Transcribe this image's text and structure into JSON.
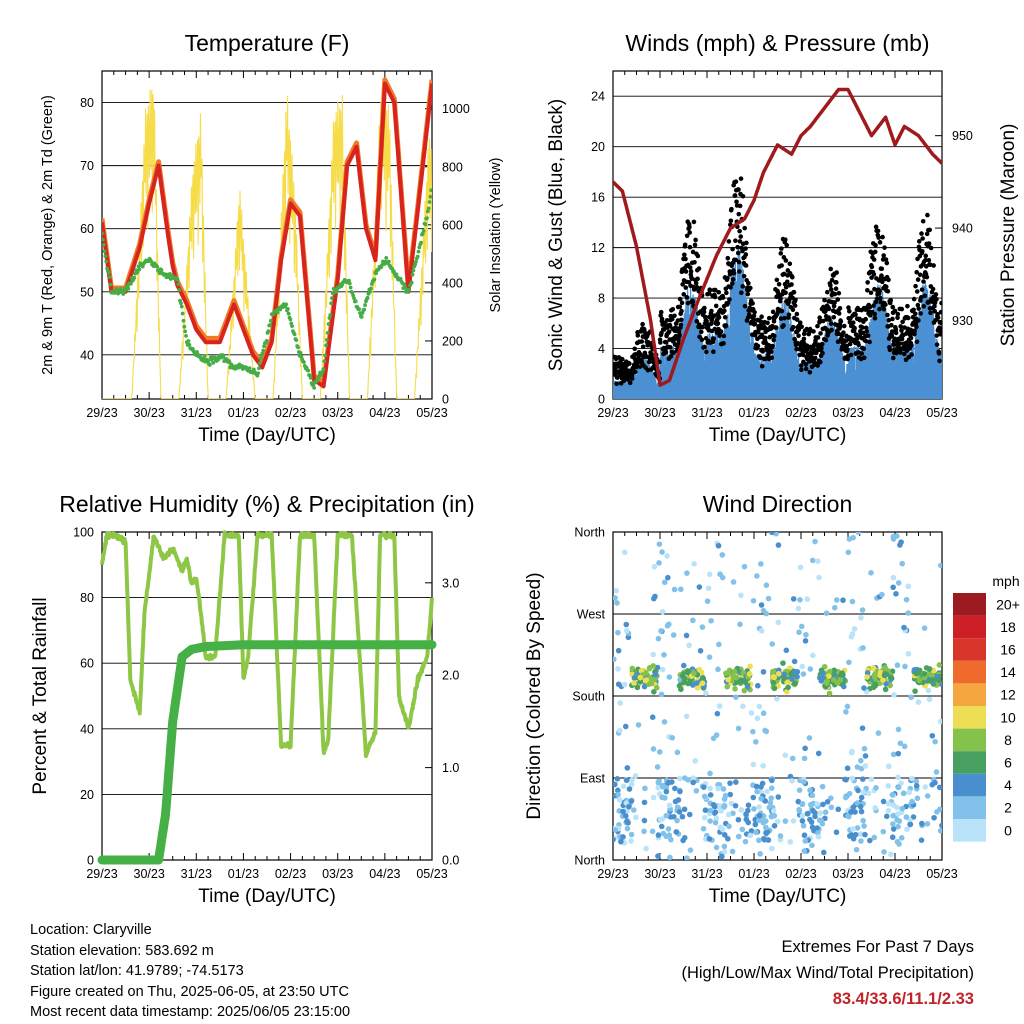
{
  "chart_data": [
    {
      "type": "line",
      "title": "Temperature (F)",
      "xlabel": "Time (Day/UTC)",
      "ylabel": "2m & 9m T (Red, Orange) & 2m Td (Green)",
      "y2label": "Solar Insolation (Yellow)",
      "x_ticks": [
        "29/23",
        "30/23",
        "31/23",
        "01/23",
        "02/23",
        "03/23",
        "04/23",
        "05/23"
      ],
      "ylim": [
        33,
        85
      ],
      "y_ticks": [
        40,
        50,
        60,
        70,
        80
      ],
      "y2lim": [
        0,
        1130
      ],
      "y2_ticks": [
        0,
        200,
        400,
        600,
        800,
        1000
      ],
      "colors": {
        "t2m": "#d7241f",
        "t9m": "#f07a26",
        "td": "#46ad46",
        "solar": "#f7dc4a"
      },
      "series": [
        {
          "key": "t2m",
          "x": [
            0,
            0.2,
            0.5,
            0.8,
            1.0,
            1.2,
            1.4,
            1.5,
            1.6,
            1.8,
            2.0,
            2.2,
            2.5,
            2.8,
            3.0,
            3.2,
            3.4,
            3.6,
            3.8,
            4.0,
            4.2,
            4.5,
            4.7,
            5.0,
            5.2,
            5.4,
            5.6,
            5.8,
            6.0,
            6.2,
            6.5,
            6.7,
            7.0
          ],
          "values": [
            61,
            50,
            50,
            57,
            64,
            70,
            59,
            54,
            51,
            48,
            44,
            42,
            42,
            48,
            44,
            40,
            38,
            42,
            55,
            64,
            62,
            36,
            35,
            52,
            70,
            73,
            60,
            55,
            83,
            80,
            50,
            63,
            83
          ]
        },
        {
          "key": "td",
          "x": [
            0,
            0.2,
            0.5,
            0.8,
            1.0,
            1.3,
            1.6,
            1.8,
            2.0,
            2.3,
            2.5,
            2.8,
            3.0,
            3.3,
            3.6,
            3.9,
            4.2,
            4.5,
            4.7,
            4.9,
            5.2,
            5.5,
            5.8,
            6.0,
            6.2,
            6.5,
            6.7,
            6.9,
            7.0
          ],
          "values": [
            59,
            50,
            50,
            54,
            55,
            53,
            52,
            42,
            40,
            39,
            40,
            38,
            38,
            37,
            46,
            48,
            40,
            35,
            38,
            50,
            52,
            46,
            53,
            55,
            53,
            50,
            56,
            62,
            67
          ]
        },
        {
          "key": "solar",
          "x": [
            0.63,
            0.92,
            1.1,
            1.25,
            1.63,
            1.92,
            2.1,
            2.25,
            2.63,
            2.92,
            3.1,
            3.25,
            3.63,
            3.92,
            4.1,
            4.25,
            4.63,
            4.92,
            5.1,
            5.25,
            5.63,
            5.92,
            6.1,
            6.25,
            6.63,
            6.92
          ],
          "values": [
            0,
            1000,
            1120,
            0,
            0,
            800,
            1000,
            0,
            0,
            750,
            350,
            0,
            0,
            1080,
            700,
            0,
            0,
            1000,
            1050,
            0,
            0,
            1100,
            1000,
            0,
            0,
            900
          ]
        }
      ]
    },
    {
      "type": "scatter",
      "title": "Winds (mph) & Pressure (mb)",
      "xlabel": "Time (Day/UTC)",
      "ylabel": "Sonic Wind & Gust (Blue, Black)",
      "y2label": "Station Pressure (Maroon)",
      "x_ticks": [
        "29/23",
        "30/23",
        "31/23",
        "01/23",
        "02/23",
        "03/23",
        "04/23",
        "05/23"
      ],
      "ylim": [
        0,
        26
      ],
      "y_ticks": [
        0,
        4,
        8,
        12,
        16,
        20,
        24
      ],
      "y2lim": [
        921.5,
        957
      ],
      "y2_ticks": [
        930,
        940,
        950
      ],
      "colors": {
        "wind": "#4a90d2",
        "gust": "#000000",
        "pressure": "#a0191d"
      },
      "series": [
        {
          "key": "pressure",
          "x": [
            0,
            0.2,
            0.5,
            0.8,
            1.0,
            1.2,
            1.5,
            1.8,
            2.2,
            2.5,
            2.8,
            3.0,
            3.2,
            3.5,
            3.8,
            4.0,
            4.2,
            4.5,
            4.8,
            5.0,
            5.2,
            5.5,
            5.8,
            6.0,
            6.2,
            6.5,
            6.8,
            7.0
          ],
          "values": [
            945,
            944,
            938,
            930,
            923,
            923.5,
            928,
            932,
            937,
            940,
            941,
            943,
            946,
            949,
            948,
            950,
            951,
            953,
            955,
            955,
            953,
            950,
            952,
            949,
            951,
            950,
            948,
            947
          ]
        }
      ]
    },
    {
      "type": "line",
      "title": "Relative Humidity (%) & Precipitation (in)",
      "xlabel": "Time (Day/UTC)",
      "ylabel": "Percent & Total Rainfall",
      "x_ticks": [
        "29/23",
        "30/23",
        "31/23",
        "01/23",
        "02/23",
        "03/23",
        "04/23",
        "05/23"
      ],
      "ylim": [
        0,
        100
      ],
      "y_ticks": [
        0,
        20,
        40,
        60,
        80,
        100
      ],
      "y2lim": [
        0,
        3.55
      ],
      "y2_ticks": [
        "0.0",
        "1.0",
        "2.0",
        "3.0"
      ],
      "colors": {
        "rh": "#8ec646",
        "rain": "#45b045"
      },
      "series": [
        {
          "key": "rh",
          "x": [
            0,
            0.1,
            0.3,
            0.5,
            0.6,
            0.8,
            0.9,
            1.1,
            1.3,
            1.5,
            1.7,
            1.8,
            1.9,
            2.0,
            2.1,
            2.2,
            2.4,
            2.6,
            2.8,
            2.9,
            3.0,
            3.1,
            3.3,
            3.5,
            3.6,
            3.8,
            4.0,
            4.2,
            4.3,
            4.5,
            4.7,
            4.8,
            5.0,
            5.2,
            5.3,
            5.6,
            5.8,
            5.9,
            6.0,
            6.2,
            6.3,
            6.5,
            6.7,
            6.9,
            7.0
          ],
          "values": [
            90,
            99,
            99,
            97,
            55,
            45,
            75,
            99,
            92,
            95,
            88,
            92,
            84,
            86,
            75,
            62,
            62,
            99,
            99,
            99,
            55,
            62,
            99,
            99,
            99,
            35,
            35,
            99,
            99,
            99,
            33,
            37,
            99,
            99,
            99,
            32,
            39,
            99,
            99,
            99,
            50,
            40,
            55,
            62,
            80
          ]
        },
        {
          "key": "rain",
          "x": [
            0,
            1.2,
            1.35,
            1.5,
            1.7,
            1.9,
            2.2,
            3.0,
            4.0,
            5.0,
            6.0,
            7.0
          ],
          "values": [
            0,
            0,
            0.5,
            1.5,
            2.2,
            2.28,
            2.31,
            2.33,
            2.33,
            2.33,
            2.33,
            2.33
          ]
        }
      ]
    },
    {
      "type": "scatter",
      "title": "Wind Direction",
      "xlabel": "Time (Day/UTC)",
      "ylabel": "Direction (Colored By Speed)",
      "x_ticks": [
        "29/23",
        "30/23",
        "31/23",
        "01/23",
        "02/23",
        "03/23",
        "04/23",
        "05/23"
      ],
      "y_ticks": [
        "North",
        "East",
        "South",
        "West",
        "North"
      ],
      "legend_title": "mph",
      "legend": [
        "0",
        "2",
        "4",
        "6",
        "8",
        "10",
        "12",
        "14",
        "16",
        "18",
        "20+"
      ],
      "legend_colors": [
        "#b9e3f8",
        "#82c2ea",
        "#4a8fcd",
        "#47a060",
        "#84c24c",
        "#eede55",
        "#f5a640",
        "#ef6a2d",
        "#d8352a",
        "#cc1f26",
        "#9c1b21"
      ]
    }
  ],
  "info": {
    "location": "Location: Claryville",
    "elevation": "Station elevation: 583.692 m",
    "latlon": "Station lat/lon: 41.9789; -74.5173",
    "created": "Figure created on Thu, 2025-06-05, at 23:50 UTC",
    "latest": "Most recent data timestamp: 2025/06/05 23:15:00"
  },
  "extremes": {
    "line1": "Extremes For Past 7 Days",
    "line2": "(High/Low/Max Wind/Total Precipitation)",
    "values": "83.4/33.6/11.1/2.33"
  }
}
